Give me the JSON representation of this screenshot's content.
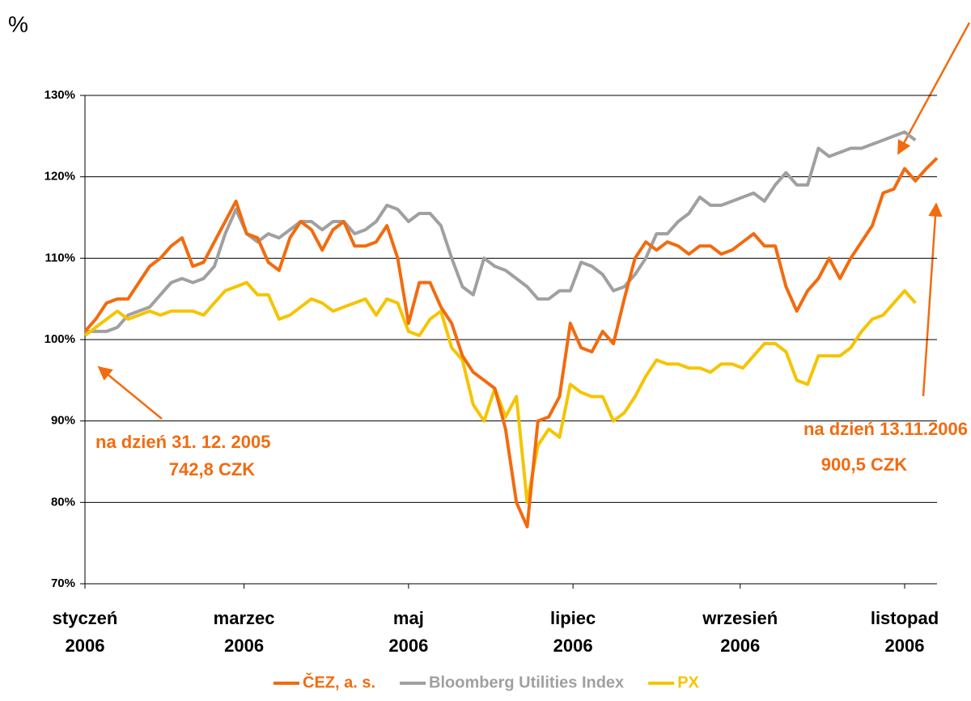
{
  "chart_data": {
    "type": "line",
    "y_unit_label": "%",
    "x": [
      0,
      4,
      8,
      12,
      16,
      20,
      24,
      28,
      32,
      36,
      40,
      44,
      48,
      52,
      56,
      60,
      64,
      68,
      72,
      76,
      80,
      84,
      88,
      92,
      96,
      100,
      104,
      108,
      112,
      116,
      120,
      124,
      128,
      132,
      136,
      140,
      144,
      148,
      152,
      156,
      160,
      164,
      168,
      172,
      176,
      180,
      184,
      188,
      192,
      196,
      200,
      204,
      208,
      212,
      216,
      220,
      224,
      228,
      232,
      236,
      240,
      244,
      248,
      252,
      256,
      260,
      264,
      268,
      272,
      276,
      280,
      284,
      288,
      292,
      296,
      300,
      304,
      308,
      312,
      316
    ],
    "xlim": [
      0,
      316
    ],
    "xticks": [
      {
        "value": 0,
        "label": "styczeń\n2006"
      },
      {
        "value": 59,
        "label": "marzec\n2006"
      },
      {
        "value": 120,
        "label": "maj\n2006"
      },
      {
        "value": 181,
        "label": "lipiec\n2006"
      },
      {
        "value": 243,
        "label": "wrzesień\n2006"
      },
      {
        "value": 304,
        "label": "listopad\n2006"
      }
    ],
    "ylim": [
      70,
      130
    ],
    "yticks": [
      {
        "value": 70,
        "label": "70%"
      },
      {
        "value": 80,
        "label": "80%"
      },
      {
        "value": 90,
        "label": "90%"
      },
      {
        "value": 100,
        "label": "100%"
      },
      {
        "value": 110,
        "label": "110%"
      },
      {
        "value": 120,
        "label": "120%"
      },
      {
        "value": 130,
        "label": "130%"
      }
    ],
    "grid": true,
    "legend": "bottom",
    "series": [
      {
        "name": "ČEZ, a. s.",
        "color": "#f26b0f",
        "values": [
          101,
          102.5,
          104.5,
          105,
          105,
          107,
          109,
          110,
          111.5,
          112.5,
          109,
          109.5,
          112,
          114.5,
          117,
          113,
          112.5,
          109.5,
          108.5,
          112.5,
          114.5,
          113.5,
          111,
          113.5,
          114.5,
          111.5,
          111.5,
          112,
          114,
          110,
          102,
          107,
          107,
          104,
          102,
          98,
          96,
          95,
          94,
          89,
          80,
          77,
          90,
          90.5,
          93,
          102,
          99,
          98.5,
          101,
          99.5,
          105,
          110,
          112,
          111,
          112,
          111.5,
          110.5,
          111.5,
          111.5,
          110.5,
          111,
          112,
          113,
          111.5,
          111.5,
          106.5,
          103.5,
          106,
          107.5,
          110,
          107.5,
          110,
          112,
          114,
          118,
          118.5,
          121,
          119.5,
          121,
          122.3
        ]
      },
      {
        "name": "Bloomberg Utilities Index",
        "color": "#a0a0a0",
        "values": [
          101,
          101,
          101,
          101.5,
          103,
          103.5,
          104,
          105.5,
          107,
          107.5,
          107,
          107.5,
          109,
          113,
          116,
          113,
          112,
          113,
          112.5,
          113.5,
          114.5,
          114.5,
          113.5,
          114.5,
          114.5,
          113,
          113.5,
          114.5,
          116.5,
          116,
          114.5,
          115.5,
          115.5,
          114,
          110,
          106.5,
          105.5,
          110,
          109,
          108.5,
          107.5,
          106.5,
          105,
          105,
          106,
          106,
          109.5,
          109,
          108,
          106,
          106.5,
          108,
          110,
          113,
          113,
          114.5,
          115.5,
          117.5,
          116.5,
          116.5,
          117,
          117.5,
          118,
          117,
          119,
          120.5,
          119,
          119,
          123.5,
          122.5,
          123,
          123.5,
          123.5,
          124,
          124.5,
          125,
          125.5,
          124.5,
          null,
          null
        ]
      },
      {
        "name": "PX",
        "color": "#f5c400",
        "values": [
          100.5,
          101.5,
          102.5,
          103.5,
          102.5,
          103,
          103.5,
          103,
          103.5,
          103.5,
          103.5,
          103,
          104.5,
          106,
          106.5,
          107,
          105.5,
          105.5,
          102.5,
          103,
          104,
          105,
          104.5,
          103.5,
          104,
          104.5,
          105,
          103,
          105,
          104.5,
          101,
          100.5,
          102.5,
          103.5,
          99,
          97.5,
          92,
          90,
          94,
          90.5,
          93,
          80,
          87,
          89,
          88,
          94.5,
          93.5,
          93,
          93,
          90,
          91,
          93,
          95.5,
          97.5,
          97,
          97,
          96.5,
          96.5,
          96,
          97,
          97,
          96.5,
          98,
          99.5,
          99.5,
          98.5,
          95,
          94.5,
          98,
          98,
          98,
          99,
          101,
          102.5,
          103,
          104.5,
          106,
          104.5,
          null,
          null
        ]
      }
    ],
    "annotations": [
      {
        "text": "na dzień 31. 12. 2005"
      },
      {
        "text": "742,8 CZK"
      },
      {
        "text": "na dzień 13.11.2006"
      },
      {
        "text": "900,5 CZK"
      }
    ]
  }
}
